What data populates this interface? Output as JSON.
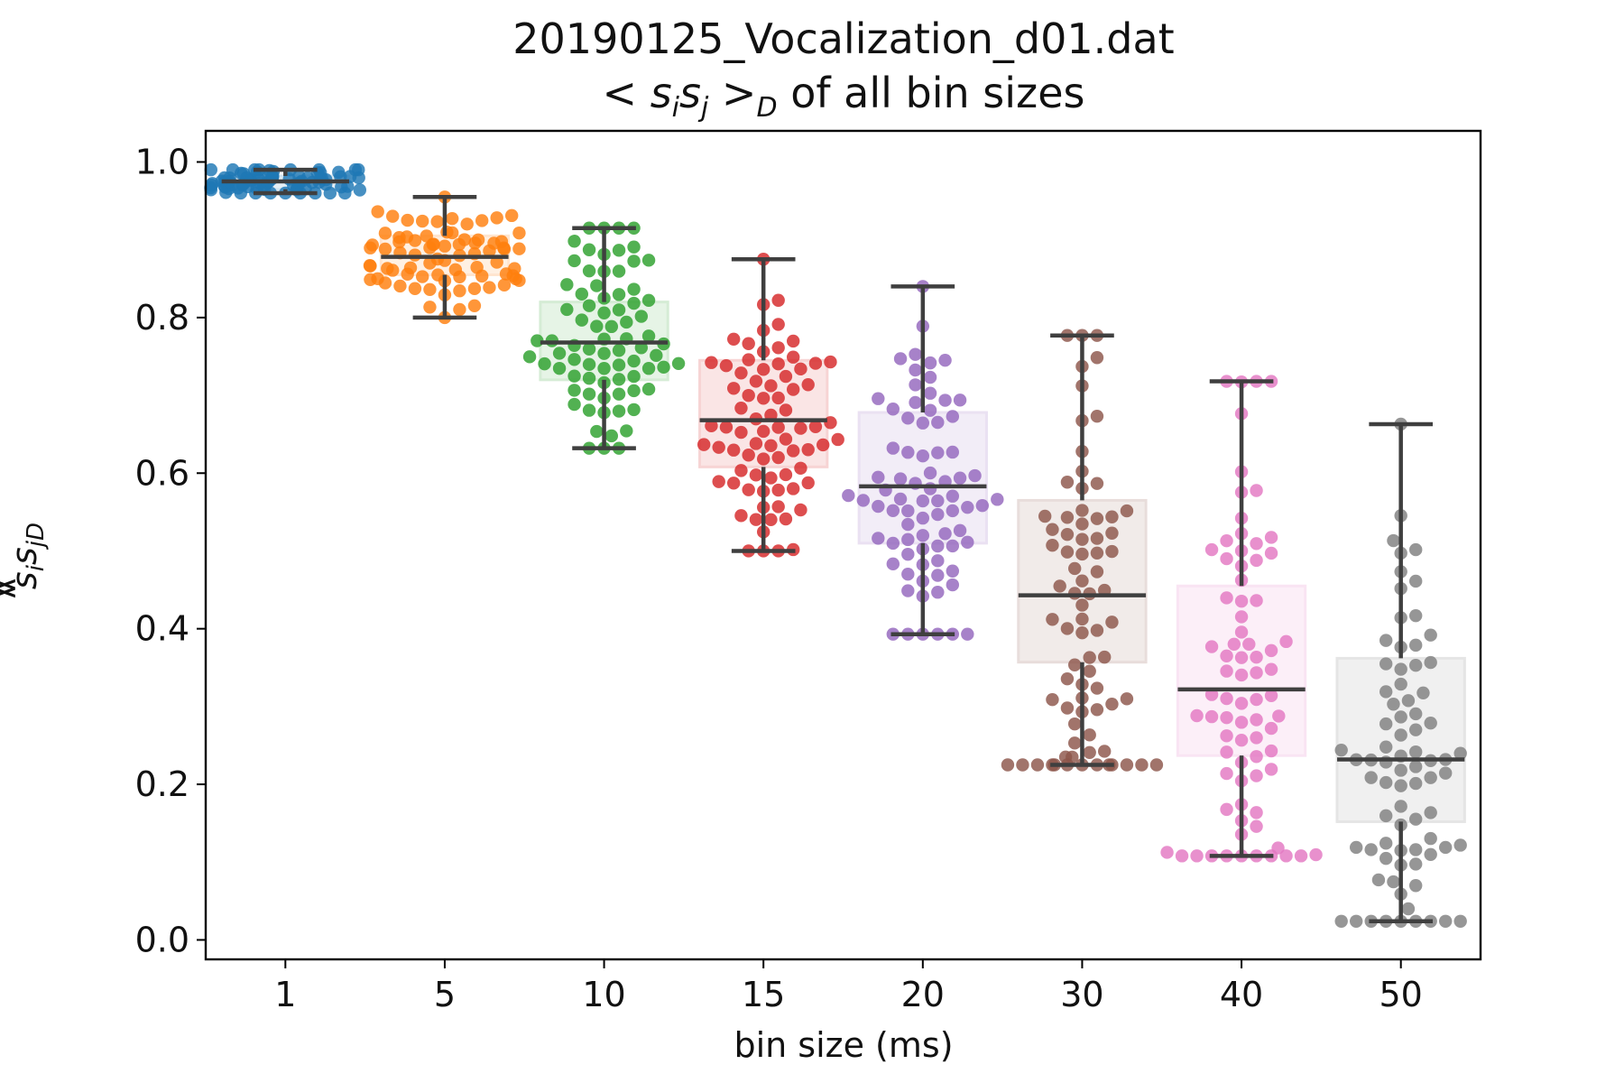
{
  "title_line1": "20190125_Vocalization_d01.dat",
  "title_line2": "<sᵢsⱼ>_D of all bin sizes",
  "title_line2_parts": {
    "prefix": "< ",
    "s1": "s",
    "i": "i",
    "s2": "s",
    "j": "j",
    "mid": " >",
    "D": "D",
    "suffix": " of all bin sizes"
  },
  "ylabel_parts": {
    "prefix": "< ",
    "s1": "s",
    "i": "i",
    "s2": "s",
    "j": "j",
    "mid": " >",
    "D": "D"
  },
  "chart_data": {
    "type": "box",
    "title": "20190125_Vocalization_d01.dat\n<s_i s_j>_D of all bin sizes",
    "xlabel": "bin size (ms)",
    "ylabel": "<s_i s_j>_D",
    "ylim": [
      -0.025,
      1.04
    ],
    "yticks": [
      0.0,
      0.2,
      0.4,
      0.6,
      0.8,
      1.0
    ],
    "ytick_labels": [
      "0.0",
      "0.2",
      "0.4",
      "0.6",
      "0.8",
      "1.0"
    ],
    "categories": [
      "1",
      "5",
      "10",
      "15",
      "20",
      "30",
      "40",
      "50"
    ],
    "colors": [
      "#1f77b4",
      "#ff7f0e",
      "#2ca02c",
      "#d62728",
      "#9467bd",
      "#8c564b",
      "#e377c2",
      "#7f7f7f"
    ],
    "grid": false,
    "boxes": [
      {
        "category": "1",
        "whislo": 0.96,
        "q1": 0.965,
        "med": 0.975,
        "q3": 0.982,
        "whishi": 0.99
      },
      {
        "category": "5",
        "whislo": 0.8,
        "q1": 0.855,
        "med": 0.878,
        "q3": 0.905,
        "whishi": 0.955
      },
      {
        "category": "10",
        "whislo": 0.632,
        "q1": 0.72,
        "med": 0.768,
        "q3": 0.82,
        "whishi": 0.915
      },
      {
        "category": "15",
        "whislo": 0.5,
        "q1": 0.608,
        "med": 0.668,
        "q3": 0.745,
        "whishi": 0.875
      },
      {
        "category": "20",
        "whislo": 0.393,
        "q1": 0.51,
        "med": 0.583,
        "q3": 0.678,
        "whishi": 0.84
      },
      {
        "category": "30",
        "whislo": 0.225,
        "q1": 0.357,
        "med": 0.443,
        "q3": 0.565,
        "whishi": 0.777
      },
      {
        "category": "40",
        "whislo": 0.108,
        "q1": 0.237,
        "med": 0.322,
        "q3": 0.455,
        "whishi": 0.718
      },
      {
        "category": "50",
        "whislo": 0.024,
        "q1": 0.152,
        "med": 0.232,
        "q3": 0.362,
        "whishi": 0.663
      }
    ],
    "points_per_group": 78,
    "overlay": "swarm"
  }
}
